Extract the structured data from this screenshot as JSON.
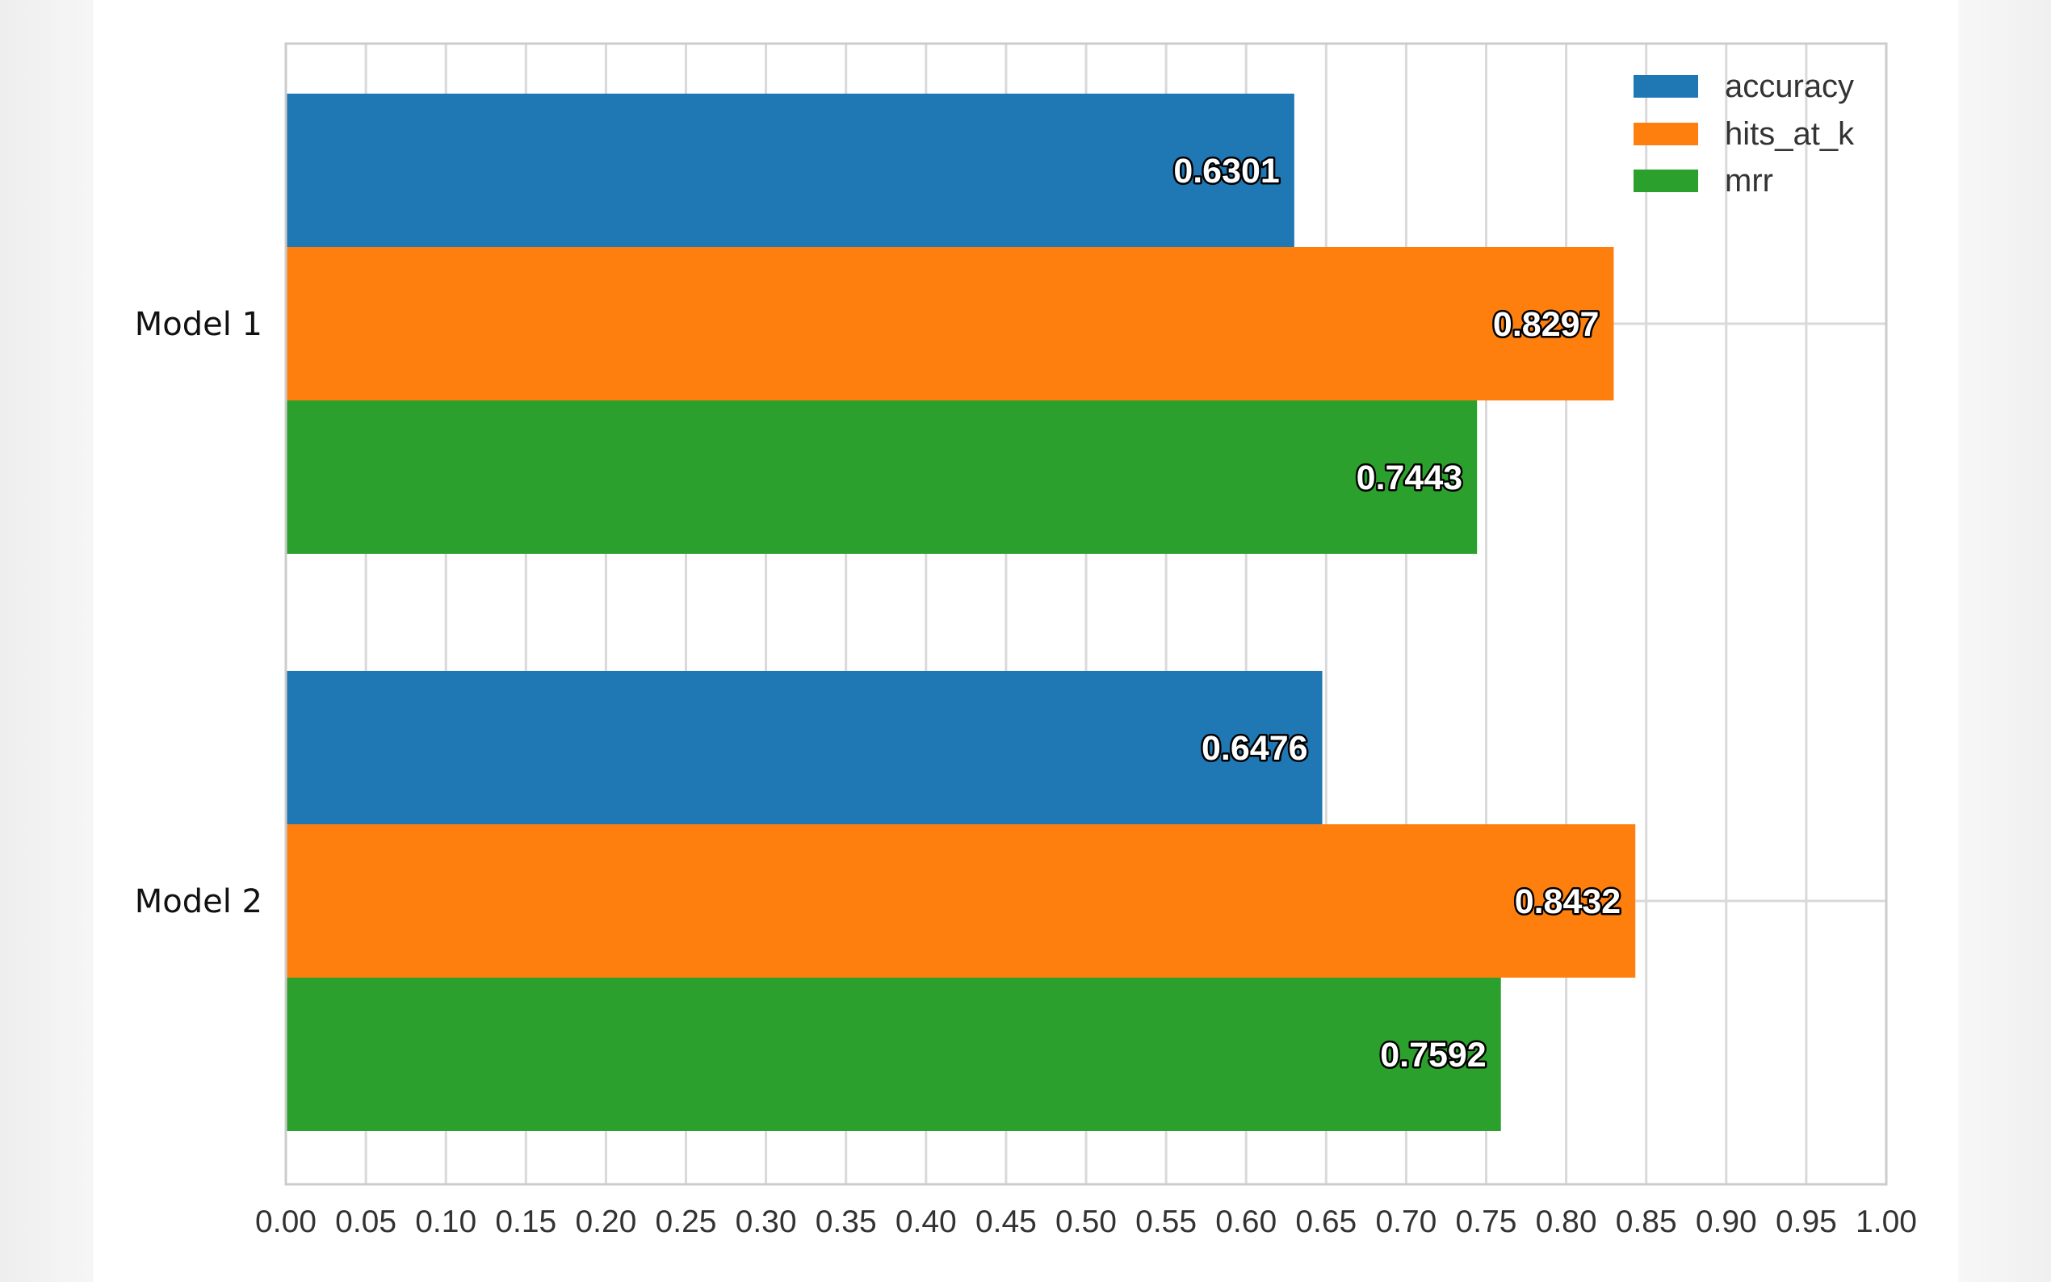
{
  "chart_data": {
    "type": "bar",
    "orientation": "horizontal",
    "title": "",
    "xlabel": "",
    "ylabel": "",
    "xlim": [
      0,
      1
    ],
    "xticks": [
      0.0,
      0.05,
      0.1,
      0.15,
      0.2,
      0.25,
      0.3,
      0.35,
      0.4,
      0.45,
      0.5,
      0.55,
      0.6,
      0.65,
      0.7,
      0.75,
      0.8,
      0.85,
      0.9,
      0.95,
      1.0
    ],
    "xtick_labels": [
      "0.00",
      "0.05",
      "0.10",
      "0.15",
      "0.20",
      "0.25",
      "0.30",
      "0.35",
      "0.40",
      "0.45",
      "0.50",
      "0.55",
      "0.60",
      "0.65",
      "0.70",
      "0.75",
      "0.80",
      "0.85",
      "0.90",
      "0.95",
      "1.00"
    ],
    "categories": [
      "Model 1",
      "Model 2"
    ],
    "series": [
      {
        "name": "accuracy",
        "color": "#1f77b4",
        "values": [
          0.6301,
          0.6476
        ],
        "labels": [
          "0.6301",
          "0.6476"
        ]
      },
      {
        "name": "hits_at_k",
        "color": "#ff7f0e",
        "values": [
          0.8297,
          0.8432
        ],
        "labels": [
          "0.8297",
          "0.8432"
        ]
      },
      {
        "name": "mrr",
        "color": "#2ca02c",
        "values": [
          0.7443,
          0.7592
        ],
        "labels": [
          "0.7443",
          "0.7592"
        ]
      }
    ],
    "legend_position": "top-right",
    "grid": true
  }
}
